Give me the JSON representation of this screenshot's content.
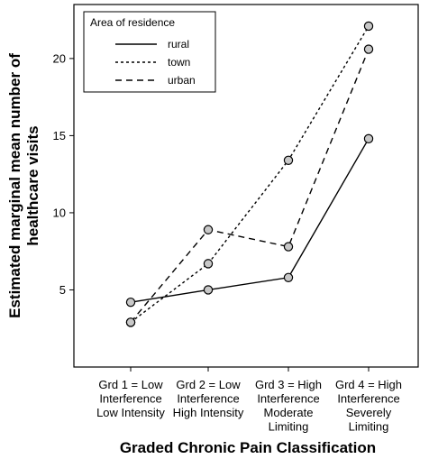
{
  "chart_data": {
    "type": "line",
    "title": "",
    "xlabel": "Graded Chronic Pain Classification",
    "ylabel": [
      "Estimated marginal mean number of",
      "healthcare visits"
    ],
    "categories": [
      [
        "Grd 1 = Low",
        "Interference",
        "Low Intensity"
      ],
      [
        "Grd 2 = Low",
        "Interference",
        "High Intensity"
      ],
      [
        "Grd 3 = High",
        "Interference",
        "Moderate",
        "Limiting"
      ],
      [
        "Grd 4 = High",
        "Interference",
        "Severely",
        "Limiting"
      ]
    ],
    "ylim": [
      0,
      23.5
    ],
    "yticks": [
      5,
      10,
      15,
      20
    ],
    "grid": false,
    "legend": {
      "title": "Area of residence",
      "placement": "top-left"
    },
    "series": [
      {
        "name": "rural",
        "dash": "none",
        "values": [
          4.2,
          5.0,
          5.8,
          14.8
        ]
      },
      {
        "name": "town",
        "dash": "3,3",
        "values": [
          2.9,
          6.7,
          13.4,
          22.1
        ]
      },
      {
        "name": "urban",
        "dash": "7,5",
        "values": [
          2.9,
          8.9,
          7.8,
          20.6
        ]
      }
    ],
    "colors": {
      "line": "#000000",
      "marker_fill": "#c8c8c8"
    }
  }
}
